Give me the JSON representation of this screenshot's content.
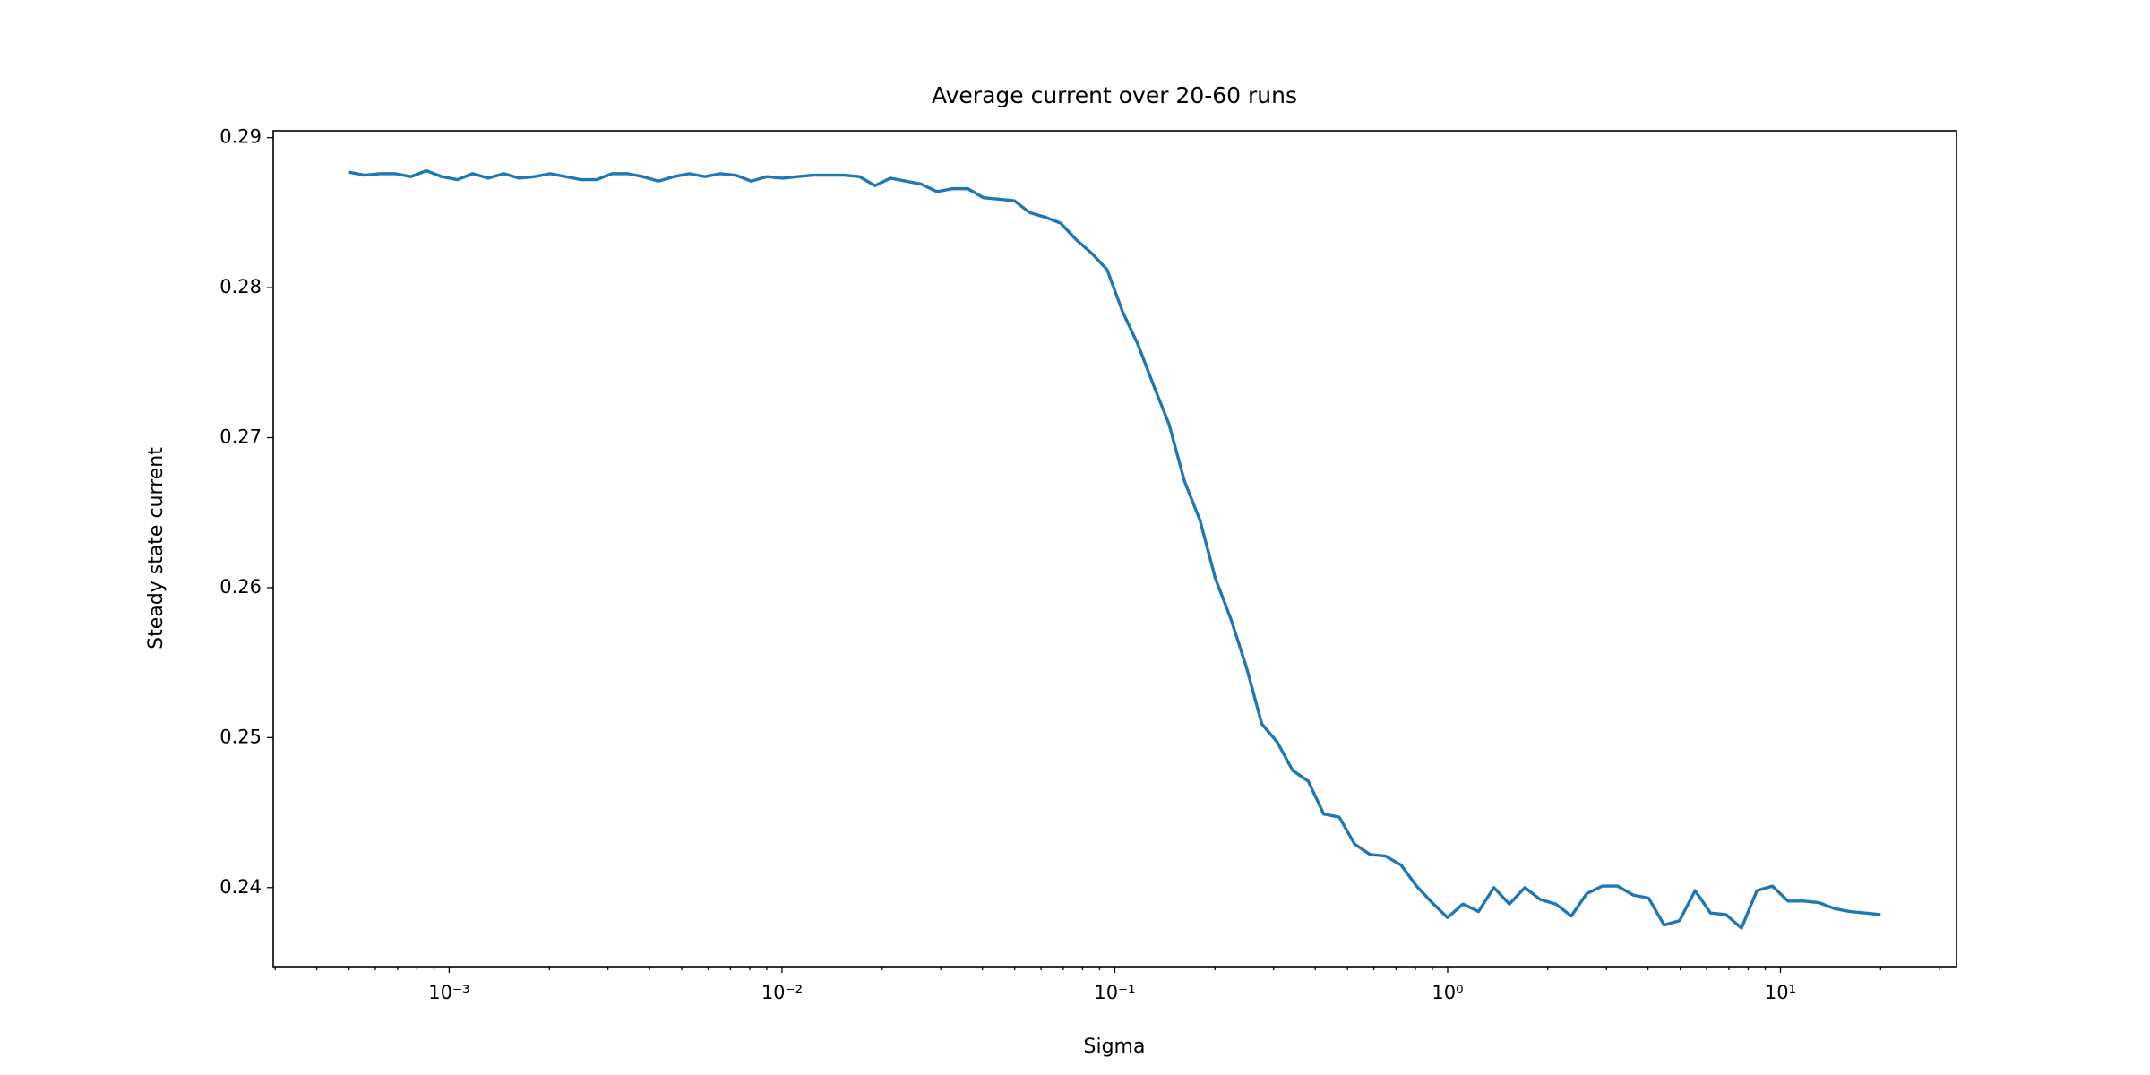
{
  "chart_data": {
    "type": "line",
    "title": "Average current over 20-60 runs",
    "xlabel": "Sigma",
    "ylabel": "Steady state current",
    "xscale": "log",
    "x": [
      0.0005,
      0.000557,
      0.000619,
      0.000689,
      0.000767,
      0.000854,
      0.00095,
      0.001058,
      0.001177,
      0.00131,
      0.001458,
      0.001623,
      0.001806,
      0.00201,
      0.002238,
      0.002491,
      0.002772,
      0.003085,
      0.003434,
      0.003822,
      0.004252,
      0.004733,
      0.005268,
      0.005863,
      0.006526,
      0.007263,
      0.008084,
      0.008998,
      0.010015,
      0.011147,
      0.0124,
      0.0138,
      0.01536,
      0.0171,
      0.01903,
      0.02118,
      0.02358,
      0.02624,
      0.02921,
      0.03251,
      0.03617,
      0.04026,
      0.04481,
      0.04988,
      0.05551,
      0.06179,
      0.06877,
      0.07654,
      0.08519,
      0.09482,
      0.1055,
      0.1174,
      0.1307,
      0.1455,
      0.1619,
      0.1802,
      0.2006,
      0.2233,
      0.2485,
      0.2766,
      0.3077,
      0.3425,
      0.3812,
      0.4243,
      0.4722,
      0.5256,
      0.585,
      0.6511,
      0.7247,
      0.8066,
      0.8975,
      0.999,
      1.112,
      1.238,
      1.377,
      1.533,
      1.706,
      1.899,
      2.114,
      2.353,
      2.618,
      2.914,
      3.243,
      3.61,
      4.018,
      4.472,
      4.977,
      5.54,
      6.166,
      6.863,
      7.635,
      8.498,
      9.459,
      10.53,
      11.72,
      13.04,
      14.51,
      16.15,
      17.98,
      20.0
    ],
    "series": [
      {
        "color": "#1f77b4",
        "values": [
          0.2877,
          0.2875,
          0.2876,
          0.2876,
          0.2874,
          0.2878,
          0.2874,
          0.2872,
          0.2876,
          0.2873,
          0.2876,
          0.2873,
          0.2874,
          0.2876,
          0.2874,
          0.2872,
          0.2872,
          0.2876,
          0.2876,
          0.2874,
          0.2871,
          0.2874,
          0.2876,
          0.2874,
          0.2876,
          0.2875,
          0.2871,
          0.2874,
          0.2873,
          0.2874,
          0.2875,
          0.2875,
          0.2875,
          0.2874,
          0.2868,
          0.2873,
          0.2871,
          0.2869,
          0.2864,
          0.2866,
          0.2866,
          0.286,
          0.2859,
          0.2858,
          0.285,
          0.2847,
          0.2843,
          0.2832,
          0.2823,
          0.2812,
          0.2784,
          0.2762,
          0.2735,
          0.2709,
          0.2671,
          0.2645,
          0.2606,
          0.2579,
          0.2547,
          0.2509,
          0.2497,
          0.2478,
          0.2471,
          0.2449,
          0.2447,
          0.2429,
          0.2422,
          0.2421,
          0.2415,
          0.2401,
          0.239,
          0.238,
          0.2389,
          0.2384,
          0.24,
          0.2389,
          0.24,
          0.2392,
          0.2389,
          0.2381,
          0.2396,
          0.2401,
          0.2401,
          0.2395,
          0.2393,
          0.2375,
          0.2378,
          0.2398,
          0.2383,
          0.2382,
          0.2373,
          0.2398,
          0.2401,
          0.2391,
          0.2391,
          0.239,
          0.2386,
          0.2384,
          0.2383,
          0.2382
        ]
      }
    ],
    "xlim": [
      0.000296,
      33.8
    ],
    "ylim": [
      0.23473,
      0.29046
    ],
    "xticks": [
      {
        "value": 0.001,
        "label": "10⁻³"
      },
      {
        "value": 0.01,
        "label": "10⁻²"
      },
      {
        "value": 0.1,
        "label": "10⁻¹"
      },
      {
        "value": 1,
        "label": "10⁰"
      },
      {
        "value": 10,
        "label": "10¹"
      }
    ],
    "xminorticks": [
      0.0003,
      0.0004,
      0.0005,
      0.0006,
      0.0007,
      0.0008,
      0.0009,
      0.002,
      0.003,
      0.004,
      0.005,
      0.006,
      0.007,
      0.008,
      0.009,
      0.02,
      0.03,
      0.04,
      0.05,
      0.06,
      0.07,
      0.08,
      0.09,
      0.2,
      0.3,
      0.4,
      0.5,
      0.6,
      0.7,
      0.8,
      0.9,
      2,
      3,
      4,
      5,
      6,
      7,
      8,
      9,
      20,
      30
    ],
    "yticks": [
      0.24,
      0.25,
      0.26,
      0.27,
      0.28,
      0.29
    ],
    "grid": false
  }
}
